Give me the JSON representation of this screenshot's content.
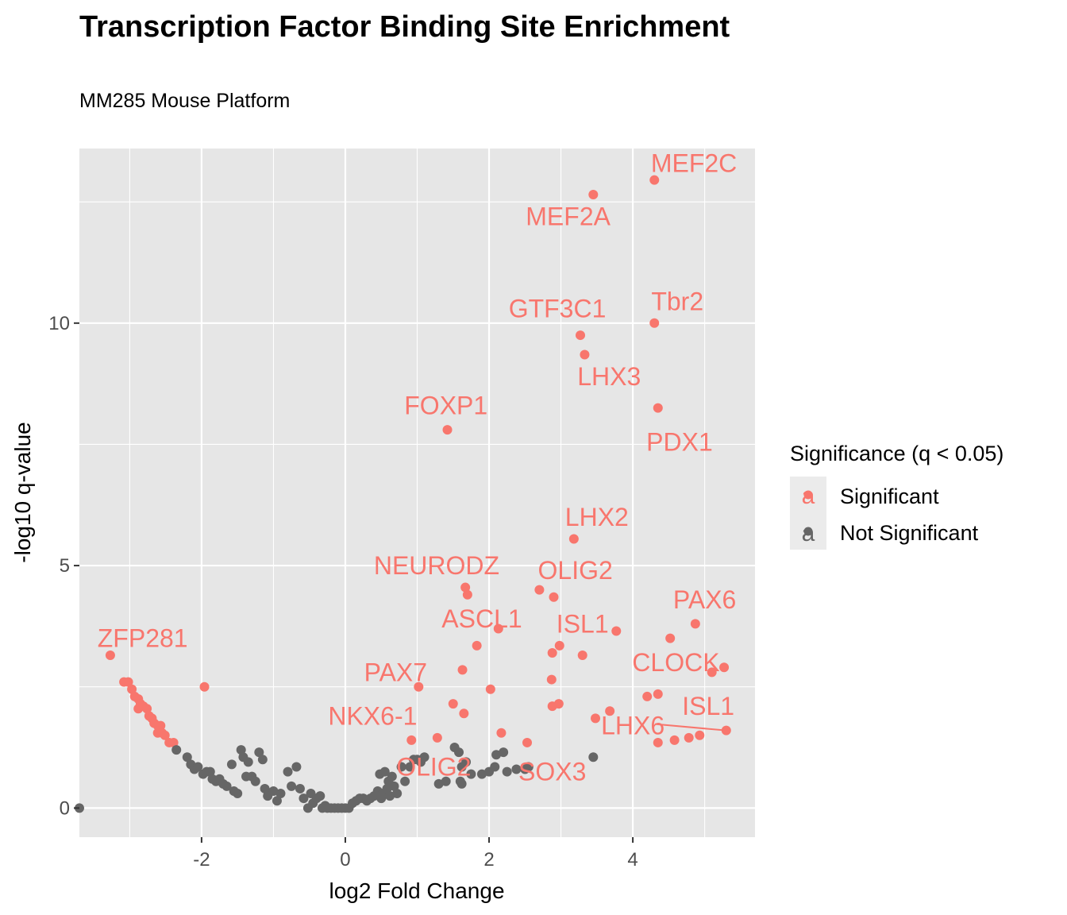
{
  "chart_data": {
    "type": "scatter",
    "title": "Transcription Factor Binding Site Enrichment",
    "subtitle": "MM285 Mouse Platform",
    "xlabel": "log2 Fold Change",
    "ylabel": "-log10 q-value",
    "xlim": [
      -3.7,
      5.7
    ],
    "ylim": [
      -0.6,
      13.6
    ],
    "x_ticks": [
      -2,
      0,
      2,
      4
    ],
    "y_ticks": [
      0,
      5,
      10
    ],
    "grid": true,
    "legend": {
      "title": "Significance (q < 0.05)",
      "position": "right",
      "entries": [
        {
          "label": "Significant",
          "color": "#F8766D",
          "glyph": "a"
        },
        {
          "label": "Not Significant",
          "color": "#666666",
          "glyph": "a"
        }
      ]
    },
    "colors": {
      "significant": "#F8766D",
      "not_significant": "#666666",
      "panel": "#E6E6E6",
      "grid": "#FFFFFF"
    },
    "series": [
      {
        "name": "Significant",
        "color": "#F8766D",
        "points": [
          [
            4.3,
            12.95
          ],
          [
            3.45,
            12.65
          ],
          [
            4.3,
            10.0
          ],
          [
            3.27,
            9.75
          ],
          [
            3.33,
            9.35
          ],
          [
            4.35,
            8.25
          ],
          [
            1.42,
            7.8
          ],
          [
            3.18,
            5.55
          ],
          [
            1.67,
            4.55
          ],
          [
            1.7,
            4.4
          ],
          [
            2.7,
            4.5
          ],
          [
            2.9,
            4.35
          ],
          [
            2.13,
            3.7
          ],
          [
            3.77,
            3.65
          ],
          [
            4.87,
            3.8
          ],
          [
            4.52,
            3.5
          ],
          [
            1.83,
            3.35
          ],
          [
            2.98,
            3.35
          ],
          [
            2.88,
            3.2
          ],
          [
            3.3,
            3.15
          ],
          [
            1.63,
            2.85
          ],
          [
            5.27,
            2.9
          ],
          [
            5.1,
            2.8
          ],
          [
            1.02,
            2.5
          ],
          [
            2.02,
            2.45
          ],
          [
            2.87,
            2.65
          ],
          [
            4.2,
            2.3
          ],
          [
            4.35,
            2.35
          ],
          [
            1.5,
            2.15
          ],
          [
            2.97,
            2.15
          ],
          [
            2.88,
            2.1
          ],
          [
            3.68,
            2.0
          ],
          [
            1.65,
            1.95
          ],
          [
            3.48,
            1.85
          ],
          [
            5.3,
            1.6
          ],
          [
            2.17,
            1.55
          ],
          [
            1.28,
            1.45
          ],
          [
            0.92,
            1.4
          ],
          [
            2.53,
            1.35
          ],
          [
            4.35,
            1.35
          ],
          [
            4.58,
            1.4
          ],
          [
            4.78,
            1.45
          ],
          [
            4.93,
            1.5
          ],
          [
            -3.27,
            3.15
          ],
          [
            -1.96,
            2.5
          ],
          [
            -3.08,
            2.6
          ],
          [
            -3.02,
            2.6
          ],
          [
            -2.97,
            2.45
          ],
          [
            -2.93,
            2.3
          ],
          [
            -2.88,
            2.25
          ],
          [
            -2.85,
            2.15
          ],
          [
            -2.88,
            2.05
          ],
          [
            -2.81,
            2.1
          ],
          [
            -2.76,
            2.05
          ],
          [
            -2.73,
            1.9
          ],
          [
            -2.69,
            1.85
          ],
          [
            -2.66,
            1.75
          ],
          [
            -2.61,
            1.7
          ],
          [
            -2.57,
            1.7
          ],
          [
            -2.61,
            1.55
          ],
          [
            -2.55,
            1.55
          ],
          [
            -2.51,
            1.5
          ],
          [
            -2.45,
            1.35
          ],
          [
            -2.39,
            1.35
          ]
        ]
      },
      {
        "name": "Not Significant",
        "color": "#666666",
        "points": [
          [
            -3.7,
            0.0
          ],
          [
            -2.35,
            1.2
          ],
          [
            -2.2,
            1.05
          ],
          [
            -2.15,
            0.9
          ],
          [
            -2.1,
            0.8
          ],
          [
            -2.05,
            0.85
          ],
          [
            -1.98,
            0.7
          ],
          [
            -1.93,
            0.75
          ],
          [
            -1.88,
            0.75
          ],
          [
            -1.85,
            0.6
          ],
          [
            -1.8,
            0.55
          ],
          [
            -1.75,
            0.6
          ],
          [
            -1.7,
            0.5
          ],
          [
            -1.65,
            0.45
          ],
          [
            -1.58,
            0.9
          ],
          [
            -1.55,
            0.35
          ],
          [
            -1.5,
            0.3
          ],
          [
            -1.45,
            1.2
          ],
          [
            -1.42,
            1.05
          ],
          [
            -1.38,
            0.65
          ],
          [
            -1.35,
            0.95
          ],
          [
            -1.3,
            0.65
          ],
          [
            -1.25,
            0.55
          ],
          [
            -1.2,
            1.15
          ],
          [
            -1.15,
            1.0
          ],
          [
            -1.12,
            0.4
          ],
          [
            -1.08,
            0.25
          ],
          [
            -1.0,
            0.35
          ],
          [
            -0.95,
            0.15
          ],
          [
            -0.9,
            0.3
          ],
          [
            -0.8,
            0.75
          ],
          [
            -0.75,
            0.45
          ],
          [
            -0.68,
            0.85
          ],
          [
            -0.63,
            0.4
          ],
          [
            -0.58,
            0.2
          ],
          [
            -0.52,
            0.0
          ],
          [
            -0.48,
            0.3
          ],
          [
            -0.45,
            0.1
          ],
          [
            -0.4,
            0.2
          ],
          [
            -0.35,
            0.25
          ],
          [
            -0.32,
            0.0
          ],
          [
            -0.28,
            0.05
          ],
          [
            -0.25,
            0.0
          ],
          [
            -0.2,
            0.0
          ],
          [
            -0.15,
            0.0
          ],
          [
            -0.1,
            0.0
          ],
          [
            -0.05,
            0.0
          ],
          [
            0.0,
            0.0
          ],
          [
            0.05,
            0.0
          ],
          [
            0.1,
            0.1
          ],
          [
            0.15,
            0.15
          ],
          [
            0.2,
            0.2
          ],
          [
            0.25,
            0.2
          ],
          [
            0.3,
            0.15
          ],
          [
            0.35,
            0.2
          ],
          [
            0.4,
            0.25
          ],
          [
            0.45,
            0.35
          ],
          [
            0.48,
            0.7
          ],
          [
            0.5,
            0.2
          ],
          [
            0.52,
            0.3
          ],
          [
            0.55,
            0.75
          ],
          [
            0.58,
            0.4
          ],
          [
            0.6,
            0.55
          ],
          [
            0.62,
            0.25
          ],
          [
            0.65,
            0.65
          ],
          [
            0.68,
            0.45
          ],
          [
            0.72,
            0.3
          ],
          [
            0.78,
            0.85
          ],
          [
            0.83,
            0.55
          ],
          [
            0.9,
            0.85
          ],
          [
            0.95,
            1.0
          ],
          [
            1.0,
            1.0
          ],
          [
            1.05,
            0.95
          ],
          [
            1.1,
            1.05
          ],
          [
            1.3,
            0.5
          ],
          [
            1.4,
            0.55
          ],
          [
            1.52,
            1.25
          ],
          [
            1.58,
            1.15
          ],
          [
            1.62,
            0.85
          ],
          [
            1.68,
            0.95
          ],
          [
            1.75,
            0.7
          ],
          [
            1.9,
            0.7
          ],
          [
            2.1,
            1.1
          ],
          [
            2.2,
            1.15
          ],
          [
            2.25,
            0.75
          ],
          [
            2.38,
            0.8
          ],
          [
            2.5,
            0.8
          ],
          [
            2.55,
            0.85
          ],
          [
            3.45,
            1.05
          ],
          [
            1.6,
            0.55
          ],
          [
            1.62,
            0.5
          ],
          [
            2.0,
            0.75
          ],
          [
            2.08,
            0.85
          ]
        ]
      }
    ],
    "labels": [
      {
        "text": "MEF2C",
        "x": 4.3,
        "y": 12.95,
        "lx": 4.85,
        "ly": 13.3
      },
      {
        "text": "MEF2A",
        "x": 3.45,
        "y": 12.65,
        "lx": 3.1,
        "ly": 12.2
      },
      {
        "text": "GTF3C1",
        "x": 3.27,
        "y": 9.75,
        "lx": 2.95,
        "ly": 10.3
      },
      {
        "text": "Tbr2",
        "x": 4.3,
        "y": 10.0,
        "lx": 4.62,
        "ly": 10.45
      },
      {
        "text": "LHX3",
        "x": 3.33,
        "y": 9.35,
        "lx": 3.67,
        "ly": 8.9
      },
      {
        "text": "FOXP1",
        "x": 1.42,
        "y": 7.8,
        "lx": 1.4,
        "ly": 8.3
      },
      {
        "text": "PDX1",
        "x": 4.35,
        "y": 8.25,
        "lx": 4.65,
        "ly": 7.55
      },
      {
        "text": "LHX2",
        "x": 3.18,
        "y": 5.55,
        "lx": 3.5,
        "ly": 6.0
      },
      {
        "text": "NEURODZ",
        "x": 1.67,
        "y": 4.55,
        "lx": 1.27,
        "ly": 5.0
      },
      {
        "text": "OLIG2",
        "x": 2.7,
        "y": 4.5,
        "lx": 3.2,
        "ly": 4.9
      },
      {
        "text": "PAX6",
        "x": 4.87,
        "y": 3.8,
        "lx": 5.0,
        "ly": 4.3
      },
      {
        "text": "ASCL1",
        "x": 2.13,
        "y": 3.7,
        "lx": 1.9,
        "ly": 3.9
      },
      {
        "text": "ISL1",
        "x": 3.77,
        "y": 3.65,
        "lx": 3.3,
        "ly": 3.8
      },
      {
        "text": "ZFP281",
        "x": -3.27,
        "y": 3.15,
        "lx": -2.82,
        "ly": 3.5
      },
      {
        "text": "CLOCK",
        "x": 5.1,
        "y": 2.8,
        "lx": 4.6,
        "ly": 3.0
      },
      {
        "text": "PAX7",
        "x": 1.02,
        "y": 2.5,
        "lx": 0.7,
        "ly": 2.8
      },
      {
        "text": "ISL1",
        "x": 5.3,
        "y": 1.6,
        "lx": 5.05,
        "ly": 2.1
      },
      {
        "text": "NKX6-1",
        "x": 0.92,
        "y": 1.4,
        "lx": 0.38,
        "ly": 1.9
      },
      {
        "text": "LHX6",
        "x": 5.3,
        "y": 1.6,
        "lx": 4.0,
        "ly": 1.7
      },
      {
        "text": "OLIG2",
        "x": 1.28,
        "y": 1.45,
        "lx": 1.23,
        "ly": 0.85
      },
      {
        "text": "SOX3",
        "x": 2.53,
        "y": 1.35,
        "lx": 2.88,
        "ly": 0.75
      }
    ]
  }
}
